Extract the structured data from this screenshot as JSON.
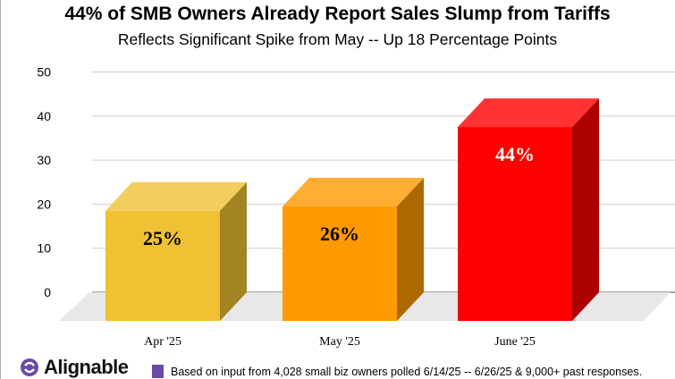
{
  "chart_data": {
    "type": "bar",
    "title": "44% of SMB Owners Already Report Sales Slump from Tariffs",
    "subtitle": "Reflects Significant Spike from May -- Up 18 Percentage Points",
    "categories": [
      "Apr '25",
      "May '25",
      "June '25"
    ],
    "values": [
      25,
      26,
      44
    ],
    "data_labels": [
      "25%",
      "26%",
      "44%"
    ],
    "colors": [
      "#f0c233",
      "#fe9a00",
      "#ff0000"
    ],
    "label_colors": [
      "#000000",
      "#000000",
      "#ffffff"
    ],
    "ylim": [
      0,
      50
    ],
    "yticks": [
      0,
      10,
      20,
      30,
      40,
      50
    ],
    "grid": true,
    "style": "3d"
  },
  "footer": {
    "logo": "Alignable",
    "note": "Based on input from 4,028 small biz owners polled 6/14/25 -- 6/26/25 & 9,000+ past responses.",
    "note_color": "#6a4aa8"
  }
}
